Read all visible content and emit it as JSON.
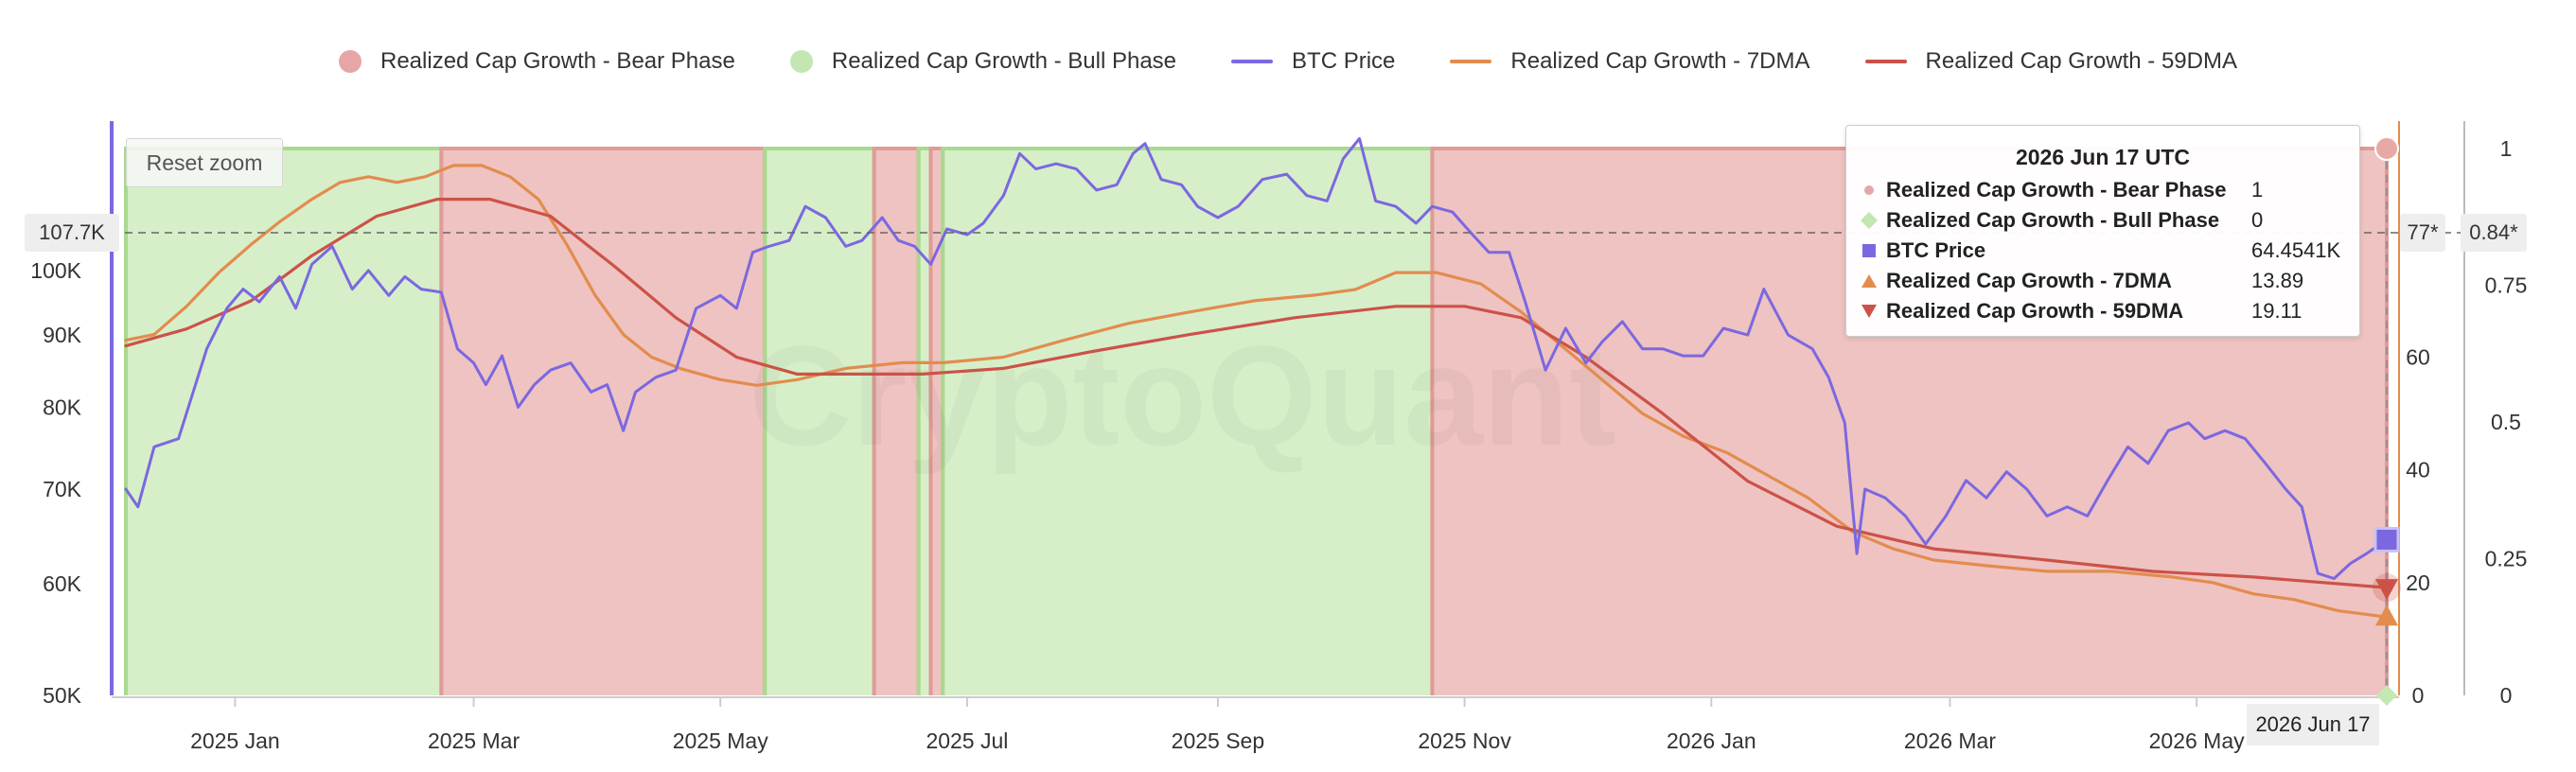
{
  "legend": [
    {
      "label": "Realized Cap Growth - Bear Phase",
      "color": "#e6a6a6",
      "symbol": "circle"
    },
    {
      "label": "Realized Cap Growth - Bull Phase",
      "color": "#c3e6b2",
      "symbol": "circle"
    },
    {
      "label": "BTC Price",
      "color": "#7b68e0",
      "symbol": "line"
    },
    {
      "label": "Realized Cap Growth - 7DMA",
      "color": "#e28c4e",
      "symbol": "line"
    },
    {
      "label": "Realized Cap Growth - 59DMA",
      "color": "#cc5248",
      "symbol": "line"
    }
  ],
  "reset_zoom_label": "Reset zoom",
  "watermark": "CryptoQuant",
  "crosshair": {
    "price_label": "107.7K",
    "mid_label": "77*",
    "right_label": "0.84*",
    "date_label": "2026 Jun 17"
  },
  "tooltip": {
    "title": "2026 Jun 17 UTC",
    "rows": [
      {
        "name": "Realized Cap Growth - Bear Phase",
        "value": "1",
        "symbol": "circle",
        "color": "#e6a6a6"
      },
      {
        "name": "Realized Cap Growth - Bull Phase",
        "value": "0",
        "symbol": "diamond",
        "color": "#c3e6b2"
      },
      {
        "name": "BTC Price",
        "value": "64.4541K",
        "symbol": "square",
        "color": "#7b68e0"
      },
      {
        "name": "Realized Cap Growth - 7DMA",
        "value": "13.89",
        "symbol": "triangle-up",
        "color": "#e28c4e"
      },
      {
        "name": "Realized Cap Growth - 59DMA",
        "value": "19.11",
        "symbol": "triangle-down",
        "color": "#cc5248"
      }
    ]
  },
  "chart_data": {
    "type": "line",
    "x_start": "2024-12-05",
    "x_end": "2026-06-17",
    "x_ticks": [
      "2025 Jan",
      "2025 Mar",
      "2025 May",
      "2025 Jul",
      "2025 Sep",
      "2025 Nov",
      "2026 Jan",
      "2026 Mar",
      "2026 May"
    ],
    "y_left": {
      "ticks": [
        "50K",
        "60K",
        "70K",
        "80K",
        "90K",
        "100K"
      ],
      "log": true,
      "range": [
        50000,
        122000
      ]
    },
    "y_mid": {
      "ticks": [
        "0",
        "20",
        "40",
        "60"
      ],
      "range": [
        0,
        97
      ]
    },
    "y_right": {
      "ticks": [
        "0",
        "0.25",
        "0.5",
        "0.75",
        "1"
      ],
      "range": [
        0,
        1
      ]
    },
    "phases": [
      {
        "start": "2024-12-05",
        "end": "2025-02-21",
        "phase": "bull"
      },
      {
        "start": "2025-02-21",
        "end": "2025-05-12",
        "phase": "bear"
      },
      {
        "start": "2025-05-12",
        "end": "2025-06-08",
        "phase": "bull"
      },
      {
        "start": "2025-06-08",
        "end": "2025-06-19",
        "phase": "bear"
      },
      {
        "start": "2025-06-19",
        "end": "2025-06-22",
        "phase": "bull"
      },
      {
        "start": "2025-06-22",
        "end": "2025-06-25",
        "phase": "bear"
      },
      {
        "start": "2025-06-25",
        "end": "2025-10-24",
        "phase": "bull"
      },
      {
        "start": "2025-10-24",
        "end": "2026-06-17",
        "phase": "bear"
      }
    ],
    "series": [
      {
        "name": "BTC Price",
        "axis": "left",
        "color": "#7b68e0",
        "points": [
          [
            "2024-12-05",
            70000
          ],
          [
            "2024-12-08",
            68000
          ],
          [
            "2024-12-12",
            75000
          ],
          [
            "2024-12-18",
            76000
          ],
          [
            "2024-12-25",
            88000
          ],
          [
            "2024-12-30",
            94000
          ],
          [
            "2025-01-03",
            97000
          ],
          [
            "2025-01-07",
            95000
          ],
          [
            "2025-01-12",
            99000
          ],
          [
            "2025-01-16",
            94000
          ],
          [
            "2025-01-20",
            101000
          ],
          [
            "2025-01-25",
            104000
          ],
          [
            "2025-01-30",
            97000
          ],
          [
            "2025-02-03",
            100000
          ],
          [
            "2025-02-08",
            96000
          ],
          [
            "2025-02-12",
            99000
          ],
          [
            "2025-02-16",
            97000
          ],
          [
            "2025-02-21",
            96500
          ],
          [
            "2025-02-25",
            88000
          ],
          [
            "2025-03-01",
            86000
          ],
          [
            "2025-03-04",
            83000
          ],
          [
            "2025-03-08",
            87000
          ],
          [
            "2025-03-12",
            80000
          ],
          [
            "2025-03-16",
            83000
          ],
          [
            "2025-03-20",
            85000
          ],
          [
            "2025-03-25",
            86000
          ],
          [
            "2025-03-30",
            82000
          ],
          [
            "2025-04-03",
            83000
          ],
          [
            "2025-04-07",
            77000
          ],
          [
            "2025-04-10",
            82000
          ],
          [
            "2025-04-15",
            84000
          ],
          [
            "2025-04-20",
            85000
          ],
          [
            "2025-04-25",
            94000
          ],
          [
            "2025-05-01",
            96000
          ],
          [
            "2025-05-05",
            94000
          ],
          [
            "2025-05-09",
            103000
          ],
          [
            "2025-05-13",
            104000
          ],
          [
            "2025-05-18",
            105000
          ],
          [
            "2025-05-22",
            111000
          ],
          [
            "2025-05-27",
            109000
          ],
          [
            "2025-06-01",
            104000
          ],
          [
            "2025-06-05",
            105000
          ],
          [
            "2025-06-10",
            109000
          ],
          [
            "2025-06-14",
            105000
          ],
          [
            "2025-06-18",
            104000
          ],
          [
            "2025-06-22",
            101000
          ],
          [
            "2025-06-26",
            107000
          ],
          [
            "2025-07-01",
            106000
          ],
          [
            "2025-07-05",
            108000
          ],
          [
            "2025-07-10",
            113000
          ],
          [
            "2025-07-14",
            121000
          ],
          [
            "2025-07-18",
            118000
          ],
          [
            "2025-07-23",
            119000
          ],
          [
            "2025-07-28",
            118000
          ],
          [
            "2025-08-02",
            114000
          ],
          [
            "2025-08-07",
            115000
          ],
          [
            "2025-08-11",
            121000
          ],
          [
            "2025-08-14",
            123000
          ],
          [
            "2025-08-18",
            116000
          ],
          [
            "2025-08-23",
            115000
          ],
          [
            "2025-08-27",
            111000
          ],
          [
            "2025-09-01",
            109000
          ],
          [
            "2025-09-06",
            111000
          ],
          [
            "2025-09-12",
            116000
          ],
          [
            "2025-09-18",
            117000
          ],
          [
            "2025-09-23",
            113000
          ],
          [
            "2025-09-28",
            112000
          ],
          [
            "2025-10-02",
            120000
          ],
          [
            "2025-10-06",
            124000
          ],
          [
            "2025-10-10",
            112000
          ],
          [
            "2025-10-15",
            111000
          ],
          [
            "2025-10-20",
            108000
          ],
          [
            "2025-10-24",
            111000
          ],
          [
            "2025-10-29",
            110000
          ],
          [
            "2025-11-03",
            106000
          ],
          [
            "2025-11-07",
            103000
          ],
          [
            "2025-11-12",
            103000
          ],
          [
            "2025-11-16",
            95000
          ],
          [
            "2025-11-21",
            85000
          ],
          [
            "2025-11-26",
            91000
          ],
          [
            "2025-12-01",
            86000
          ],
          [
            "2025-12-05",
            89000
          ],
          [
            "2025-12-10",
            92000
          ],
          [
            "2025-12-15",
            88000
          ],
          [
            "2025-12-20",
            88000
          ],
          [
            "2025-12-25",
            87000
          ],
          [
            "2025-12-30",
            87000
          ],
          [
            "2026-01-04",
            91000
          ],
          [
            "2026-01-10",
            90000
          ],
          [
            "2026-01-14",
            97000
          ],
          [
            "2026-01-20",
            90000
          ],
          [
            "2026-01-26",
            88000
          ],
          [
            "2026-01-30",
            84000
          ],
          [
            "2026-02-03",
            78000
          ],
          [
            "2026-02-06",
            63000
          ],
          [
            "2026-02-08",
            70000
          ],
          [
            "2026-02-13",
            69000
          ],
          [
            "2026-02-18",
            67000
          ],
          [
            "2026-02-23",
            64000
          ],
          [
            "2026-02-28",
            67000
          ],
          [
            "2026-03-05",
            71000
          ],
          [
            "2026-03-10",
            69000
          ],
          [
            "2026-03-15",
            72000
          ],
          [
            "2026-03-20",
            70000
          ],
          [
            "2026-03-25",
            67000
          ],
          [
            "2026-03-30",
            68000
          ],
          [
            "2026-04-04",
            67000
          ],
          [
            "2026-04-09",
            71000
          ],
          [
            "2026-04-14",
            75000
          ],
          [
            "2026-04-19",
            73000
          ],
          [
            "2026-04-24",
            77000
          ],
          [
            "2026-04-29",
            78000
          ],
          [
            "2026-05-03",
            76000
          ],
          [
            "2026-05-08",
            77000
          ],
          [
            "2026-05-13",
            76000
          ],
          [
            "2026-05-18",
            73000
          ],
          [
            "2026-05-23",
            70000
          ],
          [
            "2026-05-27",
            68000
          ],
          [
            "2026-05-31",
            61000
          ],
          [
            "2026-06-04",
            60500
          ],
          [
            "2026-06-08",
            62000
          ],
          [
            "2026-06-12",
            63000
          ],
          [
            "2026-06-17",
            64454
          ]
        ]
      },
      {
        "name": "Realized Cap Growth - 7DMA",
        "axis": "mid",
        "color": "#e28c4e",
        "points": [
          [
            "2024-12-05",
            63
          ],
          [
            "2024-12-12",
            64
          ],
          [
            "2024-12-20",
            69
          ],
          [
            "2024-12-28",
            75
          ],
          [
            "2025-01-05",
            80
          ],
          [
            "2025-01-12",
            84
          ],
          [
            "2025-01-20",
            88
          ],
          [
            "2025-01-27",
            91
          ],
          [
            "2025-02-03",
            92
          ],
          [
            "2025-02-10",
            91
          ],
          [
            "2025-02-17",
            92
          ],
          [
            "2025-02-24",
            94
          ],
          [
            "2025-03-03",
            94
          ],
          [
            "2025-03-10",
            92
          ],
          [
            "2025-03-17",
            88
          ],
          [
            "2025-03-24",
            80
          ],
          [
            "2025-03-31",
            71
          ],
          [
            "2025-04-07",
            64
          ],
          [
            "2025-04-14",
            60
          ],
          [
            "2025-04-21",
            58
          ],
          [
            "2025-05-01",
            56
          ],
          [
            "2025-05-10",
            55
          ],
          [
            "2025-05-20",
            56
          ],
          [
            "2025-06-01",
            58
          ],
          [
            "2025-06-15",
            59
          ],
          [
            "2025-06-25",
            59
          ],
          [
            "2025-07-10",
            60
          ],
          [
            "2025-07-25",
            63
          ],
          [
            "2025-08-10",
            66
          ],
          [
            "2025-08-25",
            68
          ],
          [
            "2025-09-10",
            70
          ],
          [
            "2025-09-25",
            71
          ],
          [
            "2025-10-05",
            72
          ],
          [
            "2025-10-15",
            75
          ],
          [
            "2025-10-25",
            75
          ],
          [
            "2025-11-05",
            73
          ],
          [
            "2025-11-15",
            68
          ],
          [
            "2025-11-25",
            62
          ],
          [
            "2025-12-05",
            56
          ],
          [
            "2025-12-15",
            50
          ],
          [
            "2025-12-25",
            46
          ],
          [
            "2026-01-05",
            43
          ],
          [
            "2026-01-15",
            39
          ],
          [
            "2026-01-25",
            35
          ],
          [
            "2026-02-05",
            29
          ],
          [
            "2026-02-15",
            26
          ],
          [
            "2026-02-25",
            24
          ],
          [
            "2026-03-10",
            23
          ],
          [
            "2026-03-25",
            22
          ],
          [
            "2026-04-10",
            22
          ],
          [
            "2026-04-25",
            21
          ],
          [
            "2026-05-05",
            20
          ],
          [
            "2026-05-15",
            18
          ],
          [
            "2026-05-25",
            17
          ],
          [
            "2026-06-05",
            15
          ],
          [
            "2026-06-17",
            13.89
          ]
        ]
      },
      {
        "name": "Realized Cap Growth - 59DMA",
        "axis": "mid",
        "color": "#cc5248",
        "points": [
          [
            "2024-12-05",
            62
          ],
          [
            "2024-12-20",
            65
          ],
          [
            "2025-01-05",
            70
          ],
          [
            "2025-01-20",
            78
          ],
          [
            "2025-02-05",
            85
          ],
          [
            "2025-02-20",
            88
          ],
          [
            "2025-03-05",
            88
          ],
          [
            "2025-03-20",
            85
          ],
          [
            "2025-04-05",
            76
          ],
          [
            "2025-04-20",
            67
          ],
          [
            "2025-05-05",
            60
          ],
          [
            "2025-05-20",
            57
          ],
          [
            "2025-06-05",
            57
          ],
          [
            "2025-06-20",
            57
          ],
          [
            "2025-07-10",
            58
          ],
          [
            "2025-08-01",
            61
          ],
          [
            "2025-08-25",
            64
          ],
          [
            "2025-09-20",
            67
          ],
          [
            "2025-10-15",
            69
          ],
          [
            "2025-11-01",
            69
          ],
          [
            "2025-11-15",
            67
          ],
          [
            "2025-12-01",
            60
          ],
          [
            "2025-12-20",
            50
          ],
          [
            "2026-01-10",
            38
          ],
          [
            "2026-02-01",
            30
          ],
          [
            "2026-02-25",
            26
          ],
          [
            "2026-03-25",
            24
          ],
          [
            "2026-04-20",
            22
          ],
          [
            "2026-05-15",
            21
          ],
          [
            "2026-06-17",
            19.11
          ]
        ]
      }
    ]
  }
}
